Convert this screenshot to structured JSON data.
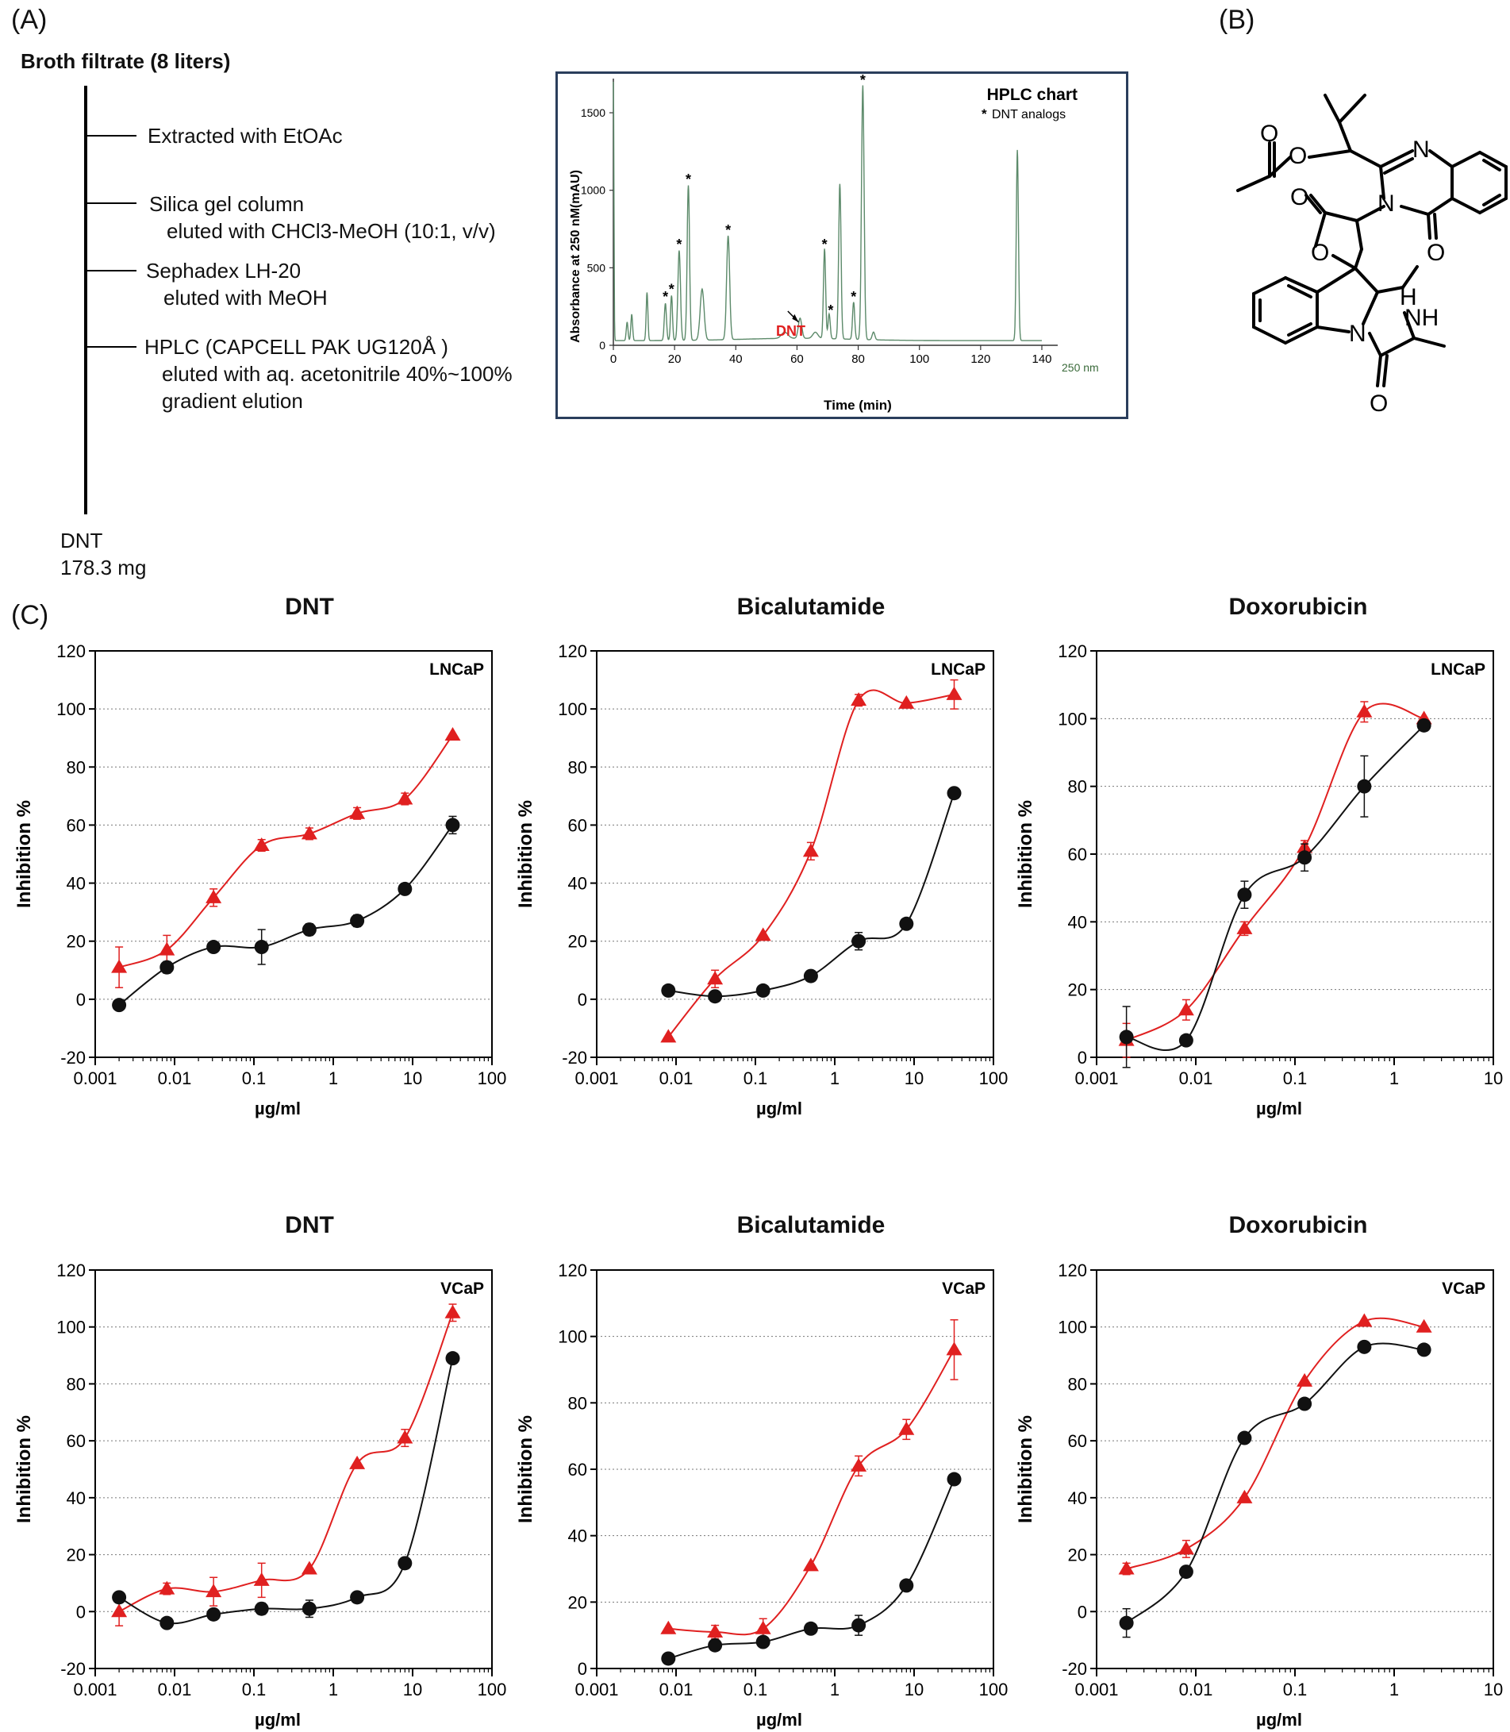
{
  "panel_labels": {
    "a": "(A)",
    "b": "(B)",
    "c": "(C)"
  },
  "flow": {
    "title": "Broth filtrate (8 liters)",
    "steps": [
      {
        "line1": "Extracted with EtOAc"
      },
      {
        "line1": "Silica gel column",
        "line2": "eluted with CHCl3-MeOH (10:1, v/v)"
      },
      {
        "line1": "Sephadex LH-20",
        "line2": "eluted with MeOH"
      },
      {
        "line1": "HPLC (CAPCELL PAK UG120Å )",
        "line2": "eluted with aq. acetonitrile 40%~100%",
        "line3": "gradient elution"
      }
    ],
    "final_name": "DNT",
    "final_amount": "178.3 mg"
  },
  "hplc": {
    "title": "HPLC chart",
    "legend": "DNT analogs",
    "legend_marker": "*",
    "ylabel": "Absorbance at 250 nM(mAU)",
    "xlabel": "Time (min)",
    "wavelength": "250 nm",
    "dnt_label": "DNT",
    "x_ticks": [
      "0",
      "20",
      "40",
      "60",
      "80",
      "100",
      "120",
      "140"
    ],
    "y_ticks": [
      "0",
      "500",
      "1000",
      "1500"
    ],
    "colors": {
      "trace": "#5c8a6a",
      "dnt": "#e02020",
      "frame": "#2a3e5c"
    }
  },
  "chart_data": [
    {
      "type": "line",
      "title": "DNT",
      "cell": "LNCaP",
      "xlabel": "µg/ml",
      "ylabel": "Inhibition %",
      "xscale": "log",
      "xlim": [
        0.001,
        100
      ],
      "ylim": [
        -20,
        120
      ],
      "xticks": [
        "0.001",
        "0.01",
        "0.1",
        "1",
        "10",
        "100"
      ],
      "yticks": [
        "-20",
        "0",
        "20",
        "40",
        "60",
        "80",
        "100",
        "120"
      ],
      "series": [
        {
          "marker": "triangle",
          "color": "#e02020",
          "x": [
            0.002,
            0.008,
            0.031,
            0.125,
            0.5,
            2,
            8,
            32
          ],
          "y": [
            11,
            17,
            35,
            53,
            57,
            64,
            69,
            91
          ],
          "err": [
            7,
            5,
            3,
            2,
            2,
            2,
            2,
            1
          ]
        },
        {
          "marker": "circle",
          "color": "#111111",
          "x": [
            0.002,
            0.008,
            0.031,
            0.125,
            0.5,
            2,
            8,
            32
          ],
          "y": [
            -2,
            11,
            18,
            18,
            24,
            27,
            38,
            60
          ],
          "err": [
            1,
            2,
            1,
            6,
            2,
            2,
            1,
            3
          ]
        }
      ]
    },
    {
      "type": "line",
      "title": "Bicalutamide",
      "cell": "LNCaP",
      "xlabel": "µg/ml",
      "ylabel": "Inhibition %",
      "xscale": "log",
      "xlim": [
        0.001,
        100
      ],
      "ylim": [
        -20,
        120
      ],
      "xticks": [
        "0.001",
        "0.01",
        "0.1",
        "1",
        "10",
        "100"
      ],
      "yticks": [
        "-20",
        "0",
        "20",
        "40",
        "60",
        "80",
        "100",
        "120"
      ],
      "series": [
        {
          "marker": "triangle",
          "color": "#e02020",
          "x": [
            0.008,
            0.031,
            0.125,
            0.5,
            2,
            8,
            32
          ],
          "y": [
            -13,
            7,
            22,
            51,
            103,
            102,
            105
          ],
          "err": [
            1,
            3,
            1,
            3,
            2,
            1,
            5
          ]
        },
        {
          "marker": "circle",
          "color": "#111111",
          "x": [
            0.008,
            0.031,
            0.125,
            0.5,
            2,
            8,
            32
          ],
          "y": [
            3,
            1,
            3,
            8,
            20,
            26,
            71
          ],
          "err": [
            1,
            1,
            1,
            1,
            3,
            1,
            1
          ]
        }
      ]
    },
    {
      "type": "line",
      "title": "Doxorubicin",
      "cell": "LNCaP",
      "xlabel": "µg/ml",
      "ylabel": "Inhibition %",
      "xscale": "log",
      "xlim": [
        0.001,
        10
      ],
      "ylim": [
        0,
        120
      ],
      "xticks": [
        "0.001",
        "0.01",
        "0.1",
        "1",
        "10"
      ],
      "yticks": [
        "0",
        "20",
        "40",
        "60",
        "80",
        "100",
        "120"
      ],
      "series": [
        {
          "marker": "triangle",
          "color": "#e02020",
          "x": [
            0.002,
            0.008,
            0.031,
            0.125,
            0.5,
            2
          ],
          "y": [
            5,
            14,
            38,
            62,
            102,
            100
          ],
          "err": [
            5,
            3,
            2,
            2,
            3,
            1
          ]
        },
        {
          "marker": "circle",
          "color": "#111111",
          "x": [
            0.002,
            0.008,
            0.031,
            0.125,
            0.5,
            2
          ],
          "y": [
            6,
            5,
            48,
            59,
            80,
            98
          ],
          "err": [
            9,
            1,
            4,
            4,
            9,
            1
          ]
        }
      ]
    },
    {
      "type": "line",
      "title": "DNT",
      "cell": "VCaP",
      "xlabel": "µg/ml",
      "ylabel": "Inhibition %",
      "xscale": "log",
      "xlim": [
        0.001,
        100
      ],
      "ylim": [
        -20,
        120
      ],
      "xticks": [
        "0.001",
        "0.01",
        "0.1",
        "1",
        "10",
        "100"
      ],
      "yticks": [
        "-20",
        "0",
        "20",
        "40",
        "60",
        "80",
        "100",
        "120"
      ],
      "series": [
        {
          "marker": "triangle",
          "color": "#e02020",
          "x": [
            0.002,
            0.008,
            0.031,
            0.125,
            0.5,
            2,
            8,
            32
          ],
          "y": [
            0,
            8,
            7,
            11,
            15,
            52,
            61,
            105
          ],
          "err": [
            5,
            2,
            5,
            6,
            1,
            1,
            3,
            3
          ]
        },
        {
          "marker": "circle",
          "color": "#111111",
          "x": [
            0.002,
            0.008,
            0.031,
            0.125,
            0.5,
            2,
            8,
            32
          ],
          "y": [
            5,
            -4,
            -1,
            1,
            1,
            5,
            17,
            89
          ],
          "err": [
            1,
            1,
            1,
            2,
            3,
            1,
            1,
            1
          ]
        }
      ]
    },
    {
      "type": "line",
      "title": "Bicalutamide",
      "cell": "VCaP",
      "xlabel": "µg/ml",
      "ylabel": "Inhibition %",
      "xscale": "log",
      "xlim": [
        0.001,
        100
      ],
      "ylim": [
        0,
        120
      ],
      "xticks": [
        "0.001",
        "0.01",
        "0.1",
        "1",
        "10",
        "100"
      ],
      "yticks": [
        "0",
        "20",
        "40",
        "60",
        "80",
        "100",
        "120"
      ],
      "series": [
        {
          "marker": "triangle",
          "color": "#e02020",
          "x": [
            0.008,
            0.031,
            0.125,
            0.5,
            2,
            8,
            32
          ],
          "y": [
            12,
            11,
            12,
            31,
            61,
            72,
            96
          ],
          "err": [
            1,
            2,
            3,
            1,
            3,
            3,
            9
          ]
        },
        {
          "marker": "circle",
          "color": "#111111",
          "x": [
            0.008,
            0.031,
            0.125,
            0.5,
            2,
            8,
            32
          ],
          "y": [
            3,
            7,
            8,
            12,
            13,
            25,
            57
          ],
          "err": [
            1,
            1,
            1,
            1,
            3,
            1,
            1
          ]
        }
      ]
    },
    {
      "type": "line",
      "title": "Doxorubicin",
      "cell": "VCaP",
      "xlabel": "µg/ml",
      "ylabel": "Inhibition %",
      "xscale": "log",
      "xlim": [
        0.001,
        10
      ],
      "ylim": [
        -20,
        120
      ],
      "xticks": [
        "0.001",
        "0.01",
        "0.1",
        "1",
        "10"
      ],
      "yticks": [
        "-20",
        "0",
        "20",
        "40",
        "60",
        "80",
        "100",
        "120"
      ],
      "series": [
        {
          "marker": "triangle",
          "color": "#e02020",
          "x": [
            0.002,
            0.008,
            0.031,
            0.125,
            0.5,
            2
          ],
          "y": [
            15,
            22,
            40,
            81,
            102,
            100
          ],
          "err": [
            2,
            3,
            1,
            1,
            1,
            1
          ]
        },
        {
          "marker": "circle",
          "color": "#111111",
          "x": [
            0.002,
            0.008,
            0.031,
            0.125,
            0.5,
            2
          ],
          "y": [
            -4,
            14,
            61,
            73,
            93,
            92
          ],
          "err": [
            5,
            1,
            1,
            1,
            1,
            1
          ]
        }
      ]
    }
  ]
}
